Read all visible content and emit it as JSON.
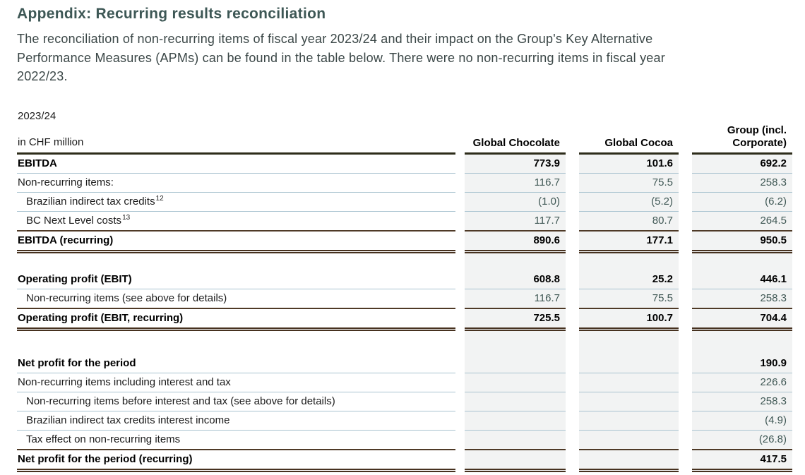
{
  "page": {
    "title": "Appendix: Recurring results reconciliation",
    "intro_lines": [
      "The reconciliation of non-recurring items of fiscal year 2023/24 and their impact on the Group's Key Alternative",
      "Performance Measures (APMs) can be found in the table below. There were no non-recurring items in fiscal year",
      "2022/23."
    ]
  },
  "table": {
    "period_label": "2023/24",
    "unit_label": "in CHF million",
    "columns": [
      "Global Chocolate",
      "Global Cocoa",
      "Group (incl. Corporate)"
    ],
    "colors": {
      "title_text": "#3d5755",
      "thin_rule": "#a9c3d0",
      "brown_rule": "#4f3a27",
      "header_rule": "#2d2c1a",
      "cell_background": "#f2f3f3",
      "value_text": "#405855"
    },
    "rows": [
      {
        "label": "EBITDA",
        "bold": true,
        "indent": false,
        "values": [
          "773.9",
          "101.6",
          "692.2"
        ],
        "border": "thin"
      },
      {
        "label": "Non-recurring items:",
        "bold": false,
        "indent": false,
        "values": [
          "116.7",
          "75.5",
          "258.3"
        ],
        "border": "thin"
      },
      {
        "label": "Brazilian indirect tax credits",
        "sup": "12",
        "bold": false,
        "indent": true,
        "values": [
          "(1.0)",
          "(5.2)",
          "(6.2)"
        ],
        "border": "thin"
      },
      {
        "label": "BC Next Level costs",
        "sup": "13",
        "bold": false,
        "indent": true,
        "values": [
          "117.7",
          "80.7",
          "264.5"
        ],
        "border": "brown"
      },
      {
        "label": "EBITDA (recurring)",
        "bold": true,
        "indent": false,
        "values": [
          "890.6",
          "177.1",
          "950.5"
        ],
        "border": "double"
      },
      {
        "type": "spacer",
        "height": 24
      },
      {
        "label": "Operating profit (EBIT)",
        "bold": true,
        "indent": false,
        "values": [
          "608.8",
          "25.2",
          "446.1"
        ],
        "border": "thin"
      },
      {
        "label": "Non-recurring items (see above for details)",
        "bold": false,
        "indent": true,
        "values": [
          "116.7",
          "75.5",
          "258.3"
        ],
        "border": "brown"
      },
      {
        "label": "Operating profit (EBIT, recurring)",
        "bold": true,
        "indent": false,
        "values": [
          "725.5",
          "100.7",
          "704.4"
        ],
        "border": "double"
      },
      {
        "type": "spacer",
        "height": 33
      },
      {
        "label": "Net profit for the period",
        "bold": true,
        "indent": false,
        "values": [
          "",
          "",
          "190.9"
        ],
        "border": "thin"
      },
      {
        "label": "Non-recurring items including interest and tax",
        "bold": false,
        "indent": false,
        "values": [
          "",
          "",
          "226.6"
        ],
        "border": "thin"
      },
      {
        "label": "Non-recurring items before interest and tax (see above for details)",
        "bold": false,
        "indent": true,
        "values": [
          "",
          "",
          "258.3"
        ],
        "border": "thin"
      },
      {
        "label": "Brazilian indirect tax credits interest income",
        "bold": false,
        "indent": true,
        "values": [
          "",
          "",
          "(4.9)"
        ],
        "border": "thin"
      },
      {
        "label": "Tax effect on non-recurring items",
        "bold": false,
        "indent": true,
        "values": [
          "",
          "",
          "(26.8)"
        ],
        "border": "brown"
      },
      {
        "label": "Net profit for the period (recurring)",
        "bold": true,
        "indent": false,
        "values": [
          "",
          "",
          "417.5"
        ],
        "border": "double"
      }
    ]
  }
}
